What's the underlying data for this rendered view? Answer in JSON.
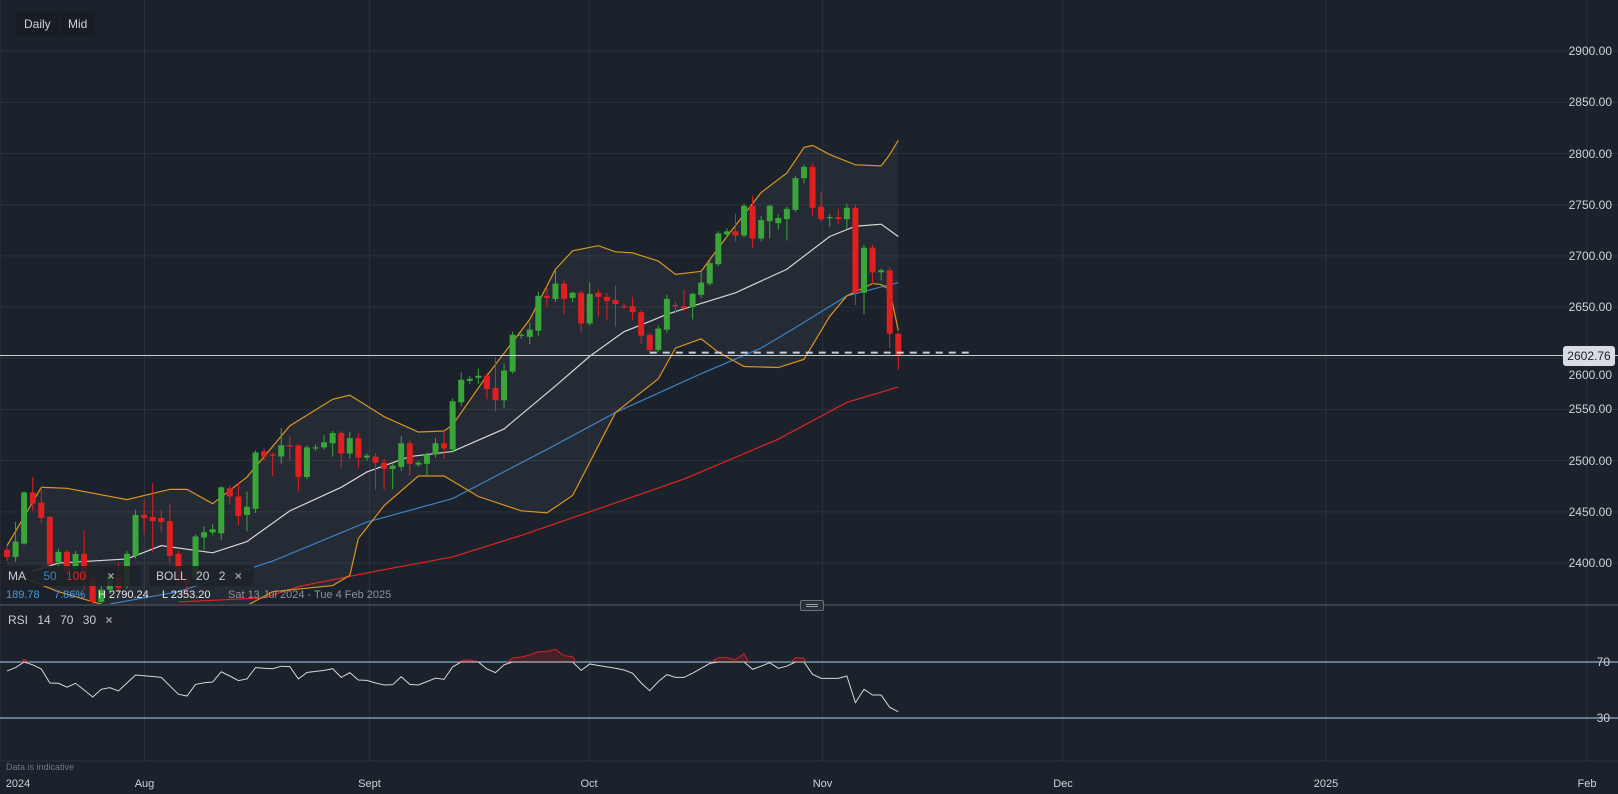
{
  "toolbar": {
    "interval_label": "Daily",
    "price_type_label": "Mid"
  },
  "legend": {
    "ma": {
      "label": "MA",
      "period1": "50",
      "period2": "100",
      "colors": {
        "ma50": "#3b82c4",
        "ma100": "#e02424"
      }
    },
    "boll": {
      "label": "BOLL",
      "period": "20",
      "stddev": "2",
      "colors": {
        "bands": "#d9961f",
        "middle": "#d6d6d6"
      }
    },
    "rsi": {
      "label": "RSI",
      "period": "14",
      "upper": "70",
      "lower": "30"
    },
    "close_icon": "×"
  },
  "info": {
    "change": "189.78",
    "change_pct": "7.86%",
    "high": "H 2790.24",
    "low": "L 2353.20",
    "range": "Sat 13 Jul 2024 - Tue 4 Feb 2025"
  },
  "last_price": "2602.76",
  "note": "Data is indicative",
  "colors": {
    "background": "#1c222b",
    "up": "#3aa63a",
    "down": "#e02020",
    "grid": "#2b313a",
    "rsi_line": "#d6d6d6",
    "rsi_levels": "#a9d2f2",
    "rsi_overbought": "#c0202a"
  },
  "chart_data": [
    {
      "type": "candlestick",
      "interval": "Daily",
      "ylim": [
        2360,
        2950
      ],
      "grid": true,
      "y_ticks": [
        "2900.00",
        "2850.00",
        "2800.00",
        "2750.00",
        "2700.00",
        "2650.00",
        "2600.00",
        "2550.00",
        "2500.00",
        "2450.00",
        "2400.00"
      ],
      "x_ticks": [
        "2024",
        "Aug",
        "Sept",
        "Oct",
        "Nov",
        "Dec",
        "2025",
        "Feb"
      ],
      "ohlc_columns": [
        "open",
        "high",
        "low",
        "close"
      ],
      "candles": [
        [
          2413,
          2416,
          2402,
          2406
        ],
        [
          2406,
          2440,
          2401,
          2421
        ],
        [
          2419,
          2470,
          2418,
          2469
        ],
        [
          2469,
          2484,
          2451,
          2458
        ],
        [
          2459,
          2475,
          2439,
          2444
        ],
        [
          2445,
          2446,
          2394,
          2399
        ],
        [
          2401,
          2414,
          2396,
          2411
        ],
        [
          2411,
          2413,
          2386,
          2391
        ],
        [
          2394,
          2412,
          2389,
          2409
        ],
        [
          2409,
          2432,
          2374,
          2384
        ],
        [
          2386,
          2392,
          2353.2,
          2362
        ],
        [
          2362,
          2378,
          2358,
          2374
        ],
        [
          2374,
          2390,
          2370,
          2386
        ],
        [
          2386,
          2400,
          2372,
          2376
        ],
        [
          2378,
          2412,
          2375,
          2409
        ],
        [
          2407,
          2452,
          2404,
          2447
        ],
        [
          2447,
          2461,
          2428,
          2444
        ],
        [
          2445,
          2478,
          2411,
          2441
        ],
        [
          2444,
          2452,
          2430,
          2440
        ],
        [
          2441,
          2458,
          2400,
          2407
        ],
        [
          2409,
          2412,
          2379,
          2384
        ],
        [
          2386,
          2394,
          2369,
          2379
        ],
        [
          2384,
          2428,
          2380,
          2426
        ],
        [
          2425,
          2436,
          2413,
          2430
        ],
        [
          2430,
          2438,
          2427,
          2433
        ],
        [
          2429,
          2475,
          2423,
          2474
        ],
        [
          2473,
          2476,
          2457,
          2465
        ],
        [
          2465,
          2479,
          2437,
          2446
        ],
        [
          2447,
          2470,
          2431,
          2455
        ],
        [
          2453,
          2510,
          2449,
          2508
        ],
        [
          2509,
          2512,
          2500,
          2504
        ],
        [
          2506,
          2508,
          2485,
          2505
        ],
        [
          2504,
          2532,
          2497,
          2515
        ],
        [
          2515,
          2524,
          2500,
          2514
        ],
        [
          2515,
          2516,
          2470,
          2484
        ],
        [
          2484,
          2515,
          2482,
          2513
        ],
        [
          2512,
          2516,
          2510,
          2513
        ],
        [
          2513,
          2525,
          2511,
          2518
        ],
        [
          2517,
          2529,
          2504,
          2527
        ],
        [
          2527,
          2529,
          2493,
          2507
        ],
        [
          2507,
          2528,
          2502,
          2522
        ],
        [
          2522,
          2527,
          2493,
          2503
        ],
        [
          2503,
          2507,
          2500,
          2505
        ],
        [
          2504,
          2507,
          2472,
          2498
        ],
        [
          2498,
          2502,
          2472,
          2492
        ],
        [
          2492,
          2498,
          2472,
          2495
        ],
        [
          2494,
          2524,
          2490,
          2517
        ],
        [
          2517,
          2520,
          2485,
          2497
        ],
        [
          2496,
          2500,
          2494,
          2498
        ],
        [
          2497,
          2508,
          2485,
          2506
        ],
        [
          2506,
          2522,
          2503,
          2517
        ],
        [
          2517,
          2529,
          2502,
          2512
        ],
        [
          2511,
          2561,
          2508,
          2558
        ],
        [
          2557,
          2586,
          2553,
          2579
        ],
        [
          2578,
          2583,
          2575,
          2580
        ],
        [
          2581,
          2590,
          2575,
          2583
        ],
        [
          2583,
          2586,
          2560,
          2570
        ],
        [
          2571,
          2601,
          2548,
          2559
        ],
        [
          2559,
          2595,
          2551,
          2588
        ],
        [
          2587,
          2626,
          2585,
          2623
        ],
        [
          2622,
          2625,
          2619,
          2623
        ],
        [
          2621,
          2635,
          2614,
          2628
        ],
        [
          2627,
          2665,
          2622,
          2661
        ],
        [
          2661,
          2671,
          2650,
          2659
        ],
        [
          2658,
          2686,
          2655,
          2673
        ],
        [
          2673,
          2676,
          2643,
          2658
        ],
        [
          2659,
          2665,
          2655,
          2664
        ],
        [
          2664,
          2666,
          2625,
          2634
        ],
        [
          2634,
          2674,
          2632,
          2663
        ],
        [
          2664,
          2667,
          2641,
          2660
        ],
        [
          2660,
          2664,
          2637,
          2656
        ],
        [
          2657,
          2671,
          2631,
          2653
        ],
        [
          2651,
          2654,
          2648,
          2650
        ],
        [
          2651,
          2660,
          2637,
          2645
        ],
        [
          2645,
          2647,
          2614,
          2622
        ],
        [
          2623,
          2625,
          2606,
          2608
        ],
        [
          2608,
          2632,
          2606,
          2629
        ],
        [
          2628,
          2662,
          2625,
          2658
        ],
        [
          2652,
          2655,
          2644,
          2651
        ],
        [
          2651,
          2667,
          2646,
          2649
        ],
        [
          2650,
          2664,
          2638,
          2663
        ],
        [
          2662,
          2684,
          2659,
          2674
        ],
        [
          2673,
          2696,
          2671,
          2693
        ],
        [
          2692,
          2724,
          2690,
          2722
        ],
        [
          2721,
          2727,
          2718,
          2724
        ],
        [
          2724,
          2741,
          2714,
          2720
        ],
        [
          2720,
          2751,
          2718,
          2749
        ],
        [
          2749,
          2759,
          2708,
          2717
        ],
        [
          2717,
          2739,
          2714,
          2735
        ],
        [
          2734,
          2750,
          2717,
          2749
        ],
        [
          2732,
          2741,
          2726,
          2737
        ],
        [
          2736,
          2748,
          2715,
          2746
        ],
        [
          2745,
          2778,
          2743,
          2776
        ],
        [
          2776,
          2789,
          2771,
          2787
        ],
        [
          2787,
          2790.24,
          2739,
          2747
        ],
        [
          2748,
          2763,
          2733,
          2736
        ],
        [
          2737,
          2741,
          2728,
          2738
        ],
        [
          2738,
          2746,
          2731,
          2736
        ],
        [
          2736,
          2751,
          2726,
          2747
        ],
        [
          2747,
          2750,
          2652,
          2664
        ],
        [
          2664,
          2711,
          2643,
          2708
        ],
        [
          2708,
          2711,
          2672,
          2684
        ],
        [
          2684,
          2688,
          2676,
          2686
        ],
        [
          2686,
          2689,
          2610,
          2624
        ],
        [
          2624,
          2625,
          2589,
          2602.76
        ]
      ],
      "indicators": {
        "point_format": "[candle_index, price]",
        "ma50": [
          [
            12,
            2360
          ],
          [
            20,
            2372
          ],
          [
            31,
            2402
          ],
          [
            42,
            2440
          ],
          [
            52,
            2463
          ],
          [
            63,
            2511
          ],
          [
            71,
            2547
          ],
          [
            81,
            2585
          ],
          [
            88,
            2610
          ],
          [
            92,
            2630
          ],
          [
            98,
            2661
          ],
          [
            104,
            2674
          ]
        ],
        "ma100": [
          [
            20,
            2362
          ],
          [
            30,
            2366
          ],
          [
            34,
            2377
          ],
          [
            43,
            2392
          ],
          [
            52,
            2406
          ],
          [
            60,
            2427
          ],
          [
            68,
            2450
          ],
          [
            79,
            2482
          ],
          [
            90,
            2521
          ],
          [
            98,
            2557
          ],
          [
            104,
            2572
          ]
        ],
        "boll_upper": [
          [
            0,
            2417
          ],
          [
            1,
            2431
          ],
          [
            4,
            2474
          ],
          [
            7,
            2473
          ],
          [
            14,
            2462
          ],
          [
            19,
            2472
          ],
          [
            21,
            2472
          ],
          [
            24,
            2458
          ],
          [
            28,
            2484
          ],
          [
            33,
            2534
          ],
          [
            38,
            2560
          ],
          [
            40,
            2564
          ],
          [
            44,
            2543
          ],
          [
            48,
            2528
          ],
          [
            51,
            2529
          ],
          [
            52,
            2535
          ],
          [
            56,
            2583
          ],
          [
            61,
            2638
          ],
          [
            64,
            2687
          ],
          [
            66,
            2705
          ],
          [
            69,
            2710
          ],
          [
            71,
            2704
          ],
          [
            73,
            2703
          ],
          [
            76,
            2695
          ],
          [
            78,
            2682
          ],
          [
            81,
            2685
          ],
          [
            84,
            2719
          ],
          [
            88,
            2762
          ],
          [
            91,
            2781
          ],
          [
            93,
            2806
          ],
          [
            94,
            2808
          ],
          [
            96,
            2799
          ],
          [
            99,
            2789
          ],
          [
            102,
            2788
          ],
          [
            103,
            2799
          ],
          [
            104,
            2813
          ]
        ],
        "boll_middle": [
          [
            3,
            2392
          ],
          [
            6,
            2400
          ],
          [
            14,
            2404
          ],
          [
            18,
            2417
          ],
          [
            24,
            2410
          ],
          [
            28,
            2421
          ],
          [
            33,
            2451
          ],
          [
            39,
            2474
          ],
          [
            42,
            2489
          ],
          [
            47,
            2504
          ],
          [
            52,
            2509
          ],
          [
            58,
            2531
          ],
          [
            64,
            2573
          ],
          [
            68,
            2602
          ],
          [
            72,
            2626
          ],
          [
            75,
            2636
          ],
          [
            77,
            2643
          ],
          [
            80,
            2651
          ],
          [
            85,
            2664
          ],
          [
            91,
            2687
          ],
          [
            96,
            2719
          ],
          [
            99,
            2729
          ],
          [
            102,
            2731
          ],
          [
            104,
            2719
          ]
        ],
        "boll_lower": [
          [
            0,
            2392
          ],
          [
            6,
            2372
          ],
          [
            15,
            2350
          ],
          [
            25,
            2345
          ],
          [
            31,
            2372
          ],
          [
            38,
            2378
          ],
          [
            40,
            2388
          ],
          [
            41,
            2424
          ],
          [
            44,
            2456
          ],
          [
            48,
            2485
          ],
          [
            51,
            2485
          ],
          [
            55,
            2465
          ],
          [
            60,
            2451
          ],
          [
            63,
            2449
          ],
          [
            66,
            2466
          ],
          [
            71,
            2547
          ],
          [
            76,
            2580
          ],
          [
            78,
            2610
          ],
          [
            81,
            2619
          ],
          [
            83,
            2606
          ],
          [
            86,
            2592
          ],
          [
            90,
            2591
          ],
          [
            93,
            2599
          ],
          [
            96,
            2641
          ],
          [
            98,
            2661
          ],
          [
            101,
            2673
          ],
          [
            102,
            2672
          ],
          [
            103,
            2667
          ],
          [
            104,
            2627
          ]
        ]
      },
      "last_price_line": 2602.76,
      "dashed_level": {
        "price": 2605.5,
        "from_candle": 75
      }
    },
    {
      "type": "line",
      "name": "RSI",
      "ylim": [
        0,
        110
      ],
      "y_ticks": [
        "70",
        "30"
      ],
      "levels": [
        70,
        30
      ],
      "values": [
        63.6,
        66,
        72,
        68,
        65,
        55,
        54.8,
        52,
        54.8,
        50,
        45,
        50.5,
        51.7,
        49.3,
        55,
        60.7,
        60.2,
        59.6,
        59,
        53,
        47,
        45.7,
        54,
        55.2,
        55.7,
        63,
        60,
        56.7,
        57.9,
        66,
        65.5,
        65.2,
        67,
        66.7,
        57.9,
        62.5,
        63.3,
        64,
        65.2,
        59,
        62.4,
        57.1,
        56.9,
        55,
        53.6,
        53.8,
        59.5,
        54,
        53.6,
        56,
        58.5,
        57.6,
        66.5,
        71,
        71.5,
        70,
        65,
        62.4,
        68,
        72.9,
        73.5,
        75,
        77.4,
        77.4,
        79,
        74.5,
        73.8,
        64,
        68.6,
        67.5,
        66.5,
        65.5,
        64.3,
        61.9,
        55,
        49.5,
        56,
        61,
        59,
        59,
        62,
        65.5,
        69,
        73.1,
        73.1,
        71.5,
        76,
        64.8,
        67,
        69.5,
        65.5,
        67.1,
        73.1,
        72.6,
        61.2,
        58.3,
        58.3,
        58.3,
        60,
        41,
        50.5,
        46.4,
        46.4,
        37.6,
        34.5
      ]
    }
  ]
}
